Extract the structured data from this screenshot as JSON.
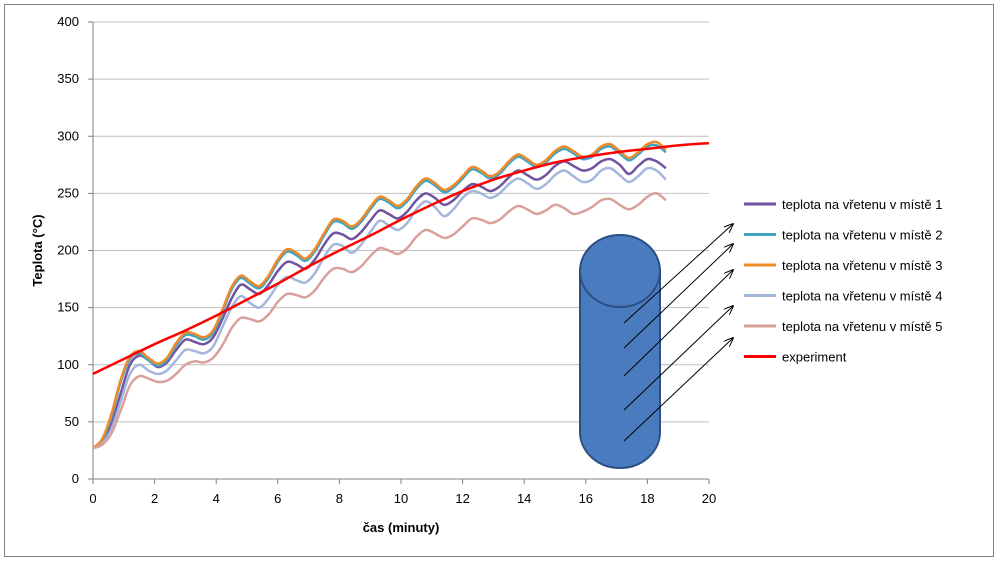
{
  "chart_data": {
    "type": "line",
    "title": "",
    "xlabel": "čas (minuty)",
    "ylabel": "Teplota (°C)",
    "xlim": [
      0,
      20
    ],
    "ylim": [
      0,
      400
    ],
    "xticks": [
      "0",
      "2",
      "4",
      "6",
      "8",
      "10",
      "12",
      "14",
      "16",
      "18",
      "20"
    ],
    "yticks": [
      "0",
      "50",
      "100",
      "150",
      "200",
      "250",
      "300",
      "350",
      "400"
    ],
    "grid": "horizontal",
    "legend_position": "right",
    "series": [
      {
        "name": "teplota na vřetenu v místě 1",
        "color": "#7054a0",
        "x": [
          0,
          0.3,
          0.6,
          0.9,
          1.2,
          1.5,
          1.8,
          2.1,
          2.4,
          2.7,
          3.0,
          3.3,
          3.6,
          3.9,
          4.2,
          4.5,
          4.8,
          5.1,
          5.4,
          5.7,
          6.0,
          6.3,
          6.6,
          6.9,
          7.2,
          7.5,
          7.8,
          8.1,
          8.4,
          8.7,
          9.0,
          9.3,
          9.6,
          9.9,
          10.2,
          10.5,
          10.8,
          11.1,
          11.4,
          11.7,
          12.0,
          12.3,
          12.6,
          12.9,
          13.2,
          13.5,
          13.8,
          14.1,
          14.4,
          14.7,
          15.0,
          15.3,
          15.6,
          15.9,
          16.2,
          16.5,
          16.8,
          17.1,
          17.4,
          17.7,
          18.0,
          18.3,
          18.6
        ],
        "y": [
          27,
          32,
          48,
          75,
          100,
          108,
          104,
          98,
          102,
          113,
          122,
          120,
          118,
          124,
          140,
          158,
          170,
          166,
          162,
          170,
          182,
          190,
          188,
          184,
          192,
          205,
          215,
          214,
          210,
          216,
          226,
          235,
          232,
          228,
          234,
          244,
          250,
          246,
          240,
          244,
          252,
          258,
          256,
          252,
          256,
          264,
          270,
          266,
          262,
          266,
          274,
          278,
          274,
          270,
          272,
          278,
          280,
          275,
          267,
          274,
          280,
          278,
          272
        ]
      },
      {
        "name": "teplota na vřetenu v místě 2",
        "color": "#3fa5c4",
        "x": [
          0,
          0.3,
          0.6,
          0.9,
          1.2,
          1.5,
          1.8,
          2.1,
          2.4,
          2.7,
          3.0,
          3.3,
          3.6,
          3.9,
          4.2,
          4.5,
          4.8,
          5.1,
          5.4,
          5.7,
          6.0,
          6.3,
          6.6,
          6.9,
          7.2,
          7.5,
          7.8,
          8.1,
          8.4,
          8.7,
          9.0,
          9.3,
          9.6,
          9.9,
          10.2,
          10.5,
          10.8,
          11.1,
          11.4,
          11.7,
          12.0,
          12.3,
          12.6,
          12.9,
          13.2,
          13.5,
          13.8,
          14.1,
          14.4,
          14.7,
          15.0,
          15.3,
          15.6,
          15.9,
          16.2,
          16.5,
          16.8,
          17.1,
          17.4,
          17.7,
          18.0,
          18.3,
          18.6
        ],
        "y": [
          27,
          34,
          55,
          85,
          105,
          110,
          104,
          99,
          104,
          117,
          126,
          125,
          122,
          128,
          146,
          166,
          176,
          171,
          167,
          176,
          190,
          199,
          196,
          191,
          199,
          213,
          225,
          224,
          219,
          225,
          236,
          245,
          242,
          237,
          243,
          254,
          261,
          257,
          251,
          255,
          263,
          271,
          268,
          263,
          267,
          276,
          282,
          278,
          273,
          277,
          285,
          289,
          285,
          280,
          282,
          289,
          291,
          285,
          279,
          284,
          291,
          292,
          286
        ]
      },
      {
        "name": "teplota na vřetenu v místě 3",
        "color": "#f08a28",
        "x": [
          0,
          0.3,
          0.6,
          0.9,
          1.2,
          1.5,
          1.8,
          2.1,
          2.4,
          2.7,
          3.0,
          3.3,
          3.6,
          3.9,
          4.2,
          4.5,
          4.8,
          5.1,
          5.4,
          5.7,
          6.0,
          6.3,
          6.6,
          6.9,
          7.2,
          7.5,
          7.8,
          8.1,
          8.4,
          8.7,
          9.0,
          9.3,
          9.6,
          9.9,
          10.2,
          10.5,
          10.8,
          11.1,
          11.4,
          11.7,
          12.0,
          12.3,
          12.6,
          12.9,
          13.2,
          13.5,
          13.8,
          14.1,
          14.4,
          14.7,
          15.0,
          15.3,
          15.6,
          15.9,
          16.2,
          16.5,
          16.8,
          17.1,
          17.4,
          17.7,
          18.0,
          18.3,
          18.6
        ],
        "y": [
          27,
          35,
          57,
          87,
          107,
          112,
          106,
          101,
          106,
          119,
          128,
          127,
          124,
          130,
          148,
          168,
          178,
          173,
          169,
          178,
          192,
          201,
          198,
          193,
          201,
          215,
          227,
          226,
          221,
          227,
          238,
          247,
          244,
          239,
          245,
          256,
          263,
          259,
          253,
          257,
          265,
          273,
          270,
          265,
          269,
          278,
          284,
          280,
          275,
          279,
          287,
          291,
          287,
          282,
          284,
          291,
          293,
          287,
          281,
          286,
          293,
          295,
          288
        ]
      },
      {
        "name": "teplota na vřetenu v místě 4",
        "color": "#a4b6dc",
        "x": [
          0,
          0.3,
          0.6,
          0.9,
          1.2,
          1.5,
          1.8,
          2.1,
          2.4,
          2.7,
          3.0,
          3.3,
          3.6,
          3.9,
          4.2,
          4.5,
          4.8,
          5.1,
          5.4,
          5.7,
          6.0,
          6.3,
          6.6,
          6.9,
          7.2,
          7.5,
          7.8,
          8.1,
          8.4,
          8.7,
          9.0,
          9.3,
          9.6,
          9.9,
          10.2,
          10.5,
          10.8,
          11.1,
          11.4,
          11.7,
          12.0,
          12.3,
          12.6,
          12.9,
          13.2,
          13.5,
          13.8,
          14.1,
          14.4,
          14.7,
          15.0,
          15.3,
          15.6,
          15.9,
          16.2,
          16.5,
          16.8,
          17.1,
          17.4,
          17.7,
          18.0,
          18.3,
          18.6
        ],
        "y": [
          27,
          31,
          44,
          68,
          92,
          100,
          95,
          92,
          95,
          104,
          113,
          112,
          110,
          116,
          133,
          150,
          160,
          154,
          150,
          158,
          170,
          177,
          174,
          172,
          180,
          194,
          205,
          204,
          198,
          205,
          216,
          226,
          222,
          218,
          224,
          236,
          243,
          238,
          230,
          236,
          246,
          252,
          250,
          246,
          250,
          258,
          263,
          259,
          254,
          258,
          266,
          270,
          265,
          260,
          262,
          270,
          272,
          266,
          260,
          265,
          272,
          270,
          262
        ]
      },
      {
        "name": "teplota na vřetenu v místě 5",
        "color": "#d9a09c",
        "x": [
          0,
          0.3,
          0.6,
          0.9,
          1.2,
          1.5,
          1.8,
          2.1,
          2.4,
          2.7,
          3.0,
          3.3,
          3.6,
          3.9,
          4.2,
          4.5,
          4.8,
          5.1,
          5.4,
          5.7,
          6.0,
          6.3,
          6.6,
          6.9,
          7.2,
          7.5,
          7.8,
          8.1,
          8.4,
          8.7,
          9.0,
          9.3,
          9.6,
          9.9,
          10.2,
          10.5,
          10.8,
          11.1,
          11.4,
          11.7,
          12.0,
          12.3,
          12.6,
          12.9,
          13.2,
          13.5,
          13.8,
          14.1,
          14.4,
          14.7,
          15.0,
          15.3,
          15.6,
          15.9,
          16.2,
          16.5,
          16.8,
          17.1,
          17.4,
          17.7,
          18.0,
          18.3,
          18.6
        ],
        "y": [
          27,
          30,
          40,
          60,
          82,
          90,
          88,
          85,
          86,
          92,
          100,
          103,
          102,
          106,
          117,
          132,
          141,
          140,
          138,
          144,
          155,
          162,
          161,
          159,
          165,
          176,
          184,
          184,
          181,
          186,
          195,
          202,
          200,
          197,
          202,
          212,
          218,
          215,
          211,
          214,
          221,
          228,
          227,
          224,
          227,
          234,
          239,
          236,
          232,
          235,
          240,
          237,
          232,
          234,
          238,
          244,
          245,
          240,
          236,
          240,
          247,
          250,
          244
        ]
      },
      {
        "name": "experiment",
        "color": "#ff0000",
        "x": [
          0,
          1,
          2,
          3,
          4,
          5,
          6,
          7,
          8,
          9,
          10,
          11,
          12,
          13,
          14,
          15,
          16,
          17,
          18,
          19,
          20
        ],
        "y": [
          92,
          105,
          118,
          130,
          143,
          157,
          171,
          186,
          200,
          213,
          227,
          240,
          252,
          262,
          270,
          277,
          282,
          286,
          289,
          292,
          294
        ]
      }
    ]
  },
  "diagram": {
    "shape": "cylinder",
    "color": "#4a7bbe",
    "arrow_count": 5
  }
}
